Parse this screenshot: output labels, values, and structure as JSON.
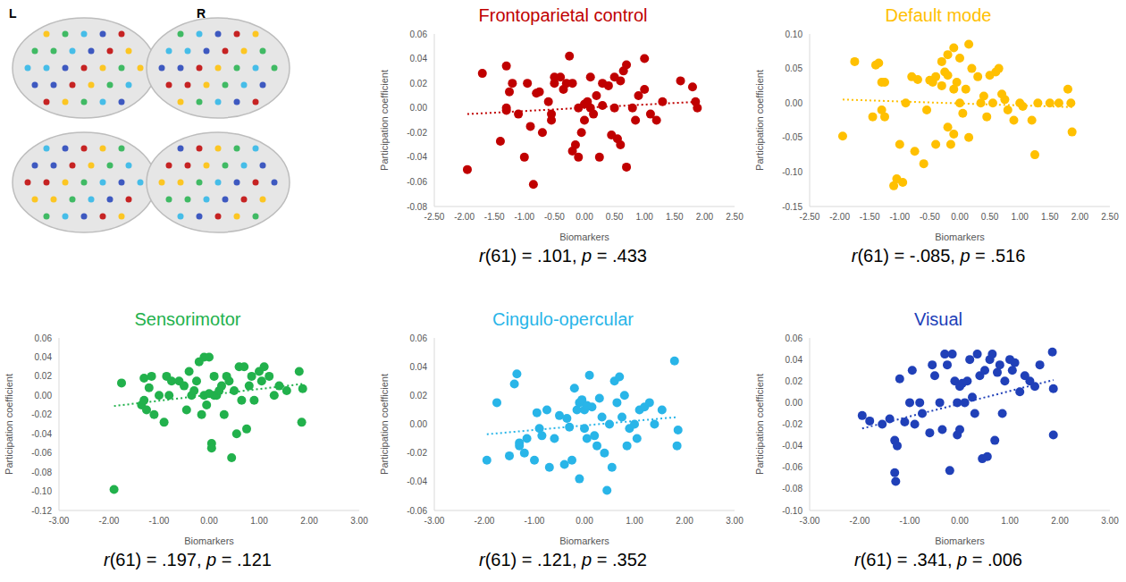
{
  "brain_panel": {
    "hemisphere_labels": [
      "L",
      "R"
    ]
  },
  "chart_data": [
    {
      "type": "scatter",
      "title": "Frontoparietal control",
      "color": "#c00000",
      "x_label": "Biomarkers",
      "y_label": "Participation coefficient",
      "marker": "circle",
      "line_style": "dotted",
      "x": [
        -1.95,
        -1.7,
        -1.4,
        -1.3,
        -1.3,
        -1.3,
        -1.25,
        -1.2,
        -1.1,
        -1.0,
        -0.95,
        -0.9,
        -0.85,
        -0.8,
        -0.75,
        -0.7,
        -0.6,
        -0.55,
        -0.55,
        -0.5,
        -0.5,
        -0.4,
        -0.35,
        -0.3,
        -0.25,
        -0.2,
        -0.2,
        -0.15,
        -0.1,
        -0.1,
        -0.05,
        0.0,
        0.0,
        0.05,
        0.1,
        0.1,
        0.15,
        0.2,
        0.25,
        0.3,
        0.3,
        0.4,
        0.45,
        0.5,
        0.5,
        0.55,
        0.6,
        0.6,
        0.65,
        0.7,
        0.7,
        0.8,
        0.85,
        0.9,
        1.0,
        1.0,
        1.1,
        1.2,
        1.3,
        1.6,
        1.8,
        1.85,
        1.88
      ],
      "y": [
        -0.05,
        0.028,
        -0.027,
        0.034,
        0.0,
        -0.002,
        0.013,
        0.02,
        -0.005,
        -0.04,
        0.02,
        -0.015,
        -0.062,
        0.012,
        0.013,
        -0.02,
        0.005,
        -0.005,
        -0.01,
        0.025,
        0.02,
        0.025,
        0.015,
        0.02,
        0.042,
        -0.035,
        0.02,
        -0.03,
        -0.04,
        0.0,
        -0.02,
        -0.01,
        0.003,
        0.005,
        0.025,
        0.0,
        -0.005,
        0.01,
        -0.04,
        0.002,
        0.02,
        0.018,
        -0.022,
        0.025,
        0.0,
        -0.025,
        -0.03,
        0.022,
        0.03,
        0.035,
        -0.048,
        0.0,
        -0.01,
        0.01,
        0.04,
        0.015,
        -0.005,
        -0.01,
        0.005,
        0.022,
        0.017,
        0.005,
        0.0
      ],
      "trendline": {
        "x": [
          -1.95,
          1.88
        ],
        "y": [
          -0.005,
          0.005
        ]
      },
      "xlim": [
        -2.5,
        2.5
      ],
      "xticks": [
        {
          "value": -2.5,
          "label": "-2.50"
        },
        {
          "value": -2,
          "label": "-2.00"
        },
        {
          "value": -1.5,
          "label": "-1.50"
        },
        {
          "value": -1,
          "label": "-1.00"
        },
        {
          "value": -0.5,
          "label": "-0.50"
        },
        {
          "value": 0,
          "label": "0.00"
        },
        {
          "value": 0.5,
          "label": "0.50"
        },
        {
          "value": 1,
          "label": "1.00"
        },
        {
          "value": 1.5,
          "label": "1.50"
        },
        {
          "value": 2,
          "label": "2.00"
        },
        {
          "value": 2.5,
          "label": "2.50"
        }
      ],
      "ylim": [
        -0.08,
        0.06
      ],
      "yticks": [
        -0.08,
        -0.06,
        -0.04,
        -0.02,
        {
          "value": 0,
          "label": "0.00"
        },
        0.02,
        0.04,
        0.06
      ],
      "annotation": "r(61) = .101, p = .433"
    },
    {
      "type": "scatter",
      "title": "Default mode",
      "color": "#ffc000",
      "x_label": "Biomarkers",
      "y_label": "Participation coefficient",
      "marker": "circle",
      "line_style": "dotted",
      "x": [
        -1.95,
        -1.75,
        -1.45,
        -1.4,
        -1.35,
        -1.3,
        -1.25,
        -1.3,
        -1.25,
        -1.1,
        -1.05,
        -1.0,
        -0.95,
        -0.9,
        -0.8,
        -0.75,
        -0.7,
        -0.6,
        -0.55,
        -0.5,
        -0.45,
        -0.4,
        -0.4,
        -0.3,
        -0.3,
        -0.25,
        -0.2,
        -0.2,
        -0.2,
        -0.15,
        -0.1,
        -0.1,
        -0.1,
        -0.05,
        0.0,
        0.0,
        0.05,
        0.1,
        0.15,
        0.15,
        0.2,
        0.3,
        0.35,
        0.4,
        0.45,
        0.5,
        0.55,
        0.6,
        0.65,
        0.7,
        0.75,
        0.8,
        0.9,
        1.0,
        1.05,
        1.2,
        1.25,
        1.3,
        1.5,
        1.65,
        1.8,
        1.85,
        1.87
      ],
      "y": [
        -0.048,
        0.06,
        -0.02,
        0.055,
        0.058,
        0.03,
        -0.02,
        -0.01,
        0.03,
        -0.12,
        -0.11,
        -0.06,
        -0.115,
        0.0,
        0.038,
        -0.07,
        0.034,
        -0.088,
        -0.01,
        0.033,
        0.03,
        0.038,
        -0.06,
        0.06,
        0.025,
        0.045,
        0.07,
        0.04,
        -0.035,
        -0.06,
        0.08,
        0.02,
        -0.045,
        0.03,
        0.065,
        0.0,
        -0.015,
        0.02,
        0.085,
        -0.05,
        0.05,
        0.038,
        0.0,
        0.01,
        -0.02,
        0.04,
        0.0,
        0.045,
        0.05,
        0.013,
        0.005,
        -0.01,
        -0.025,
        0.0,
        -0.005,
        -0.025,
        -0.075,
        0.0,
        0.0,
        0.0,
        0.02,
        0.0,
        -0.042
      ],
      "trendline": {
        "x": [
          -1.95,
          1.87
        ],
        "y": [
          0.005,
          -0.006
        ]
      },
      "xlim": [
        -2.5,
        2.5
      ],
      "xticks": [
        {
          "value": -2.5,
          "label": "-2.50"
        },
        {
          "value": -2,
          "label": "-2.00"
        },
        {
          "value": -1.5,
          "label": "-1.50"
        },
        {
          "value": -1,
          "label": "-1.00"
        },
        {
          "value": -0.5,
          "label": "-0.50"
        },
        {
          "value": 0,
          "label": "0.00"
        },
        {
          "value": 0.5,
          "label": "0.50"
        },
        {
          "value": 1,
          "label": "1.00"
        },
        {
          "value": 1.5,
          "label": "1.50"
        },
        {
          "value": 2,
          "label": "2.00"
        },
        {
          "value": 2.5,
          "label": "2.50"
        }
      ],
      "ylim": [
        -0.15,
        0.1
      ],
      "yticks": [
        -0.15,
        {
          "value": -0.1,
          "label": "-0.10"
        },
        -0.05,
        {
          "value": 0,
          "label": "0.00"
        },
        0.05,
        {
          "value": 0.1,
          "label": "0.10"
        }
      ],
      "annotation": "r(61) = -.085, p = .516"
    },
    {
      "type": "scatter",
      "title": "Sensorimotor",
      "color": "#22b14c",
      "x_label": "Biomarkers",
      "y_label": "Participation coefficient",
      "marker": "circle",
      "line_style": "dotted",
      "x": [
        -1.9,
        -1.75,
        -1.35,
        -1.3,
        -1.3,
        -1.25,
        -1.2,
        -1.15,
        -1.1,
        -1.0,
        -0.9,
        -0.85,
        -0.8,
        -0.75,
        -0.6,
        -0.5,
        -0.45,
        -0.4,
        -0.35,
        -0.3,
        -0.25,
        -0.2,
        -0.15,
        -0.1,
        -0.1,
        -0.05,
        0.0,
        0.0,
        0.05,
        0.05,
        0.1,
        0.1,
        0.15,
        0.2,
        0.25,
        0.3,
        0.35,
        0.4,
        0.45,
        0.5,
        0.55,
        0.6,
        0.65,
        0.7,
        0.75,
        0.8,
        0.85,
        0.9,
        1.0,
        1.05,
        1.1,
        1.2,
        1.3,
        1.4,
        1.55,
        1.8,
        1.85,
        1.87
      ],
      "y": [
        -0.098,
        0.013,
        -0.01,
        0.018,
        -0.005,
        -0.015,
        0.008,
        0.02,
        -0.02,
        0.0,
        -0.028,
        0.02,
        0.0,
        0.015,
        0.015,
        0.01,
        -0.015,
        0.025,
        0.0,
        0.005,
        0.015,
        0.035,
        -0.02,
        0.04,
        0.0,
        -0.01,
        0.04,
        0.002,
        -0.05,
        -0.055,
        0.0,
        0.02,
        0.0,
        0.005,
        0.01,
        -0.02,
        0.02,
        0.015,
        -0.065,
        0.005,
        -0.04,
        0.03,
        -0.005,
        0.03,
        -0.035,
        0.01,
        0.02,
        -0.005,
        0.025,
        0.015,
        0.03,
        0.02,
        0.0,
        0.01,
        0.005,
        0.025,
        -0.028,
        0.007
      ],
      "trendline": {
        "x": [
          -1.9,
          1.87
        ],
        "y": [
          -0.011,
          0.012
        ]
      },
      "xlim": [
        -3,
        3
      ],
      "xticks": [
        {
          "value": -3,
          "label": "-3.00"
        },
        {
          "value": -2,
          "label": "-2.00"
        },
        {
          "value": -1,
          "label": "-1.00"
        },
        {
          "value": 0,
          "label": "0.00"
        },
        {
          "value": 1,
          "label": "1.00"
        },
        {
          "value": 2,
          "label": "2.00"
        },
        {
          "value": 3,
          "label": "3.00"
        }
      ],
      "ylim": [
        -0.12,
        0.06
      ],
      "yticks": [
        -0.12,
        {
          "value": -0.1,
          "label": "-0.10"
        },
        -0.08,
        -0.06,
        -0.04,
        -0.02,
        {
          "value": 0,
          "label": "0.00"
        },
        0.02,
        0.04,
        0.06
      ],
      "annotation": "r(61) = .197, p = .121"
    },
    {
      "type": "scatter",
      "title": "Cingulo-opercular",
      "color": "#29b5e8",
      "x_label": "Biomarkers",
      "y_label": "Participation coefficient",
      "marker": "circle",
      "line_style": "dotted",
      "x": [
        -1.95,
        -1.75,
        -1.5,
        -1.4,
        -1.35,
        -1.3,
        -1.3,
        -1.2,
        -1.15,
        -1.0,
        -0.95,
        -0.9,
        -0.85,
        -0.75,
        -0.7,
        -0.6,
        -0.5,
        -0.4,
        -0.35,
        -0.3,
        -0.25,
        -0.2,
        -0.15,
        -0.1,
        -0.1,
        -0.05,
        0.0,
        0.0,
        0.05,
        0.05,
        0.1,
        0.15,
        0.2,
        0.25,
        0.3,
        0.35,
        0.4,
        0.45,
        0.5,
        0.55,
        0.6,
        0.65,
        0.7,
        0.75,
        0.8,
        0.85,
        0.9,
        1.0,
        1.05,
        1.1,
        1.2,
        1.3,
        1.4,
        1.55,
        1.8,
        1.85,
        1.87
      ],
      "y": [
        -0.025,
        0.015,
        -0.022,
        0.028,
        0.035,
        -0.013,
        -0.015,
        -0.02,
        -0.01,
        -0.025,
        0.008,
        -0.003,
        -0.008,
        0.01,
        -0.03,
        -0.01,
        0.006,
        -0.028,
        0.004,
        -0.002,
        -0.025,
        0.025,
        0.01,
        -0.038,
        0.015,
        0.017,
        0.01,
        -0.003,
        0.013,
        -0.01,
        0.034,
        0.012,
        -0.008,
        -0.015,
        0.018,
        0.005,
        -0.02,
        -0.046,
        0.0,
        -0.03,
        0.03,
        0.015,
        0.033,
        0.005,
        0.02,
        -0.015,
        -0.003,
        0.0,
        -0.01,
        0.01,
        0.012,
        0.015,
        0.0,
        0.01,
        0.044,
        -0.015,
        -0.004
      ],
      "trendline": {
        "x": [
          -1.95,
          1.87
        ],
        "y": [
          -0.007,
          0.005
        ]
      },
      "xlim": [
        -3,
        3
      ],
      "xticks": [
        {
          "value": -3,
          "label": "-3.00"
        },
        {
          "value": -2,
          "label": "-2.00"
        },
        {
          "value": -1,
          "label": "-1.00"
        },
        {
          "value": 0,
          "label": "0.00"
        },
        {
          "value": 1,
          "label": "1.00"
        },
        {
          "value": 2,
          "label": "2.00"
        },
        {
          "value": 3,
          "label": "3.00"
        }
      ],
      "ylim": [
        -0.06,
        0.06
      ],
      "yticks": [
        -0.06,
        -0.04,
        -0.02,
        {
          "value": 0,
          "label": "0.00"
        },
        0.02,
        0.04,
        0.06
      ],
      "annotation": "r(61) = .121, p = .352"
    },
    {
      "type": "scatter",
      "title": "Visual",
      "color": "#2040b8",
      "x_label": "Biomarkers",
      "y_label": "Participation coefficient",
      "marker": "circle",
      "line_style": "dotted",
      "x": [
        -1.95,
        -1.8,
        -1.55,
        -1.4,
        -1.3,
        -1.3,
        -1.28,
        -1.25,
        -1.2,
        -1.1,
        -1.0,
        -0.95,
        -0.9,
        -0.8,
        -0.75,
        -0.6,
        -0.55,
        -0.5,
        -0.4,
        -0.35,
        -0.3,
        -0.25,
        -0.2,
        -0.15,
        -0.1,
        -0.05,
        -0.05,
        0.0,
        0.0,
        0.05,
        0.1,
        0.15,
        0.2,
        0.25,
        0.3,
        0.35,
        0.4,
        0.45,
        0.5,
        0.55,
        0.6,
        0.65,
        0.7,
        0.75,
        0.8,
        0.85,
        0.9,
        1.0,
        1.05,
        1.1,
        1.2,
        1.3,
        1.4,
        1.5,
        1.6,
        1.85,
        1.87,
        1.87
      ],
      "y": [
        -0.012,
        -0.017,
        -0.02,
        -0.015,
        -0.035,
        -0.065,
        -0.073,
        -0.04,
        0.022,
        -0.018,
        0.0,
        0.03,
        -0.02,
        0.0,
        -0.01,
        -0.028,
        0.035,
        0.025,
        0.0,
        -0.025,
        0.045,
        0.035,
        -0.063,
        0.045,
        0.02,
        0.0,
        -0.03,
        0.015,
        -0.025,
        0.018,
        0.0,
        0.02,
        0.04,
        0.005,
        -0.01,
        0.045,
        0.025,
        -0.052,
        0.03,
        -0.05,
        0.04,
        0.045,
        -0.035,
        0.028,
        0.035,
        -0.01,
        0.02,
        0.04,
        0.03,
        0.037,
        0.01,
        0.025,
        0.02,
        0.015,
        0.035,
        0.047,
        0.013,
        -0.03
      ],
      "trendline": {
        "x": [
          -1.95,
          1.87
        ],
        "y": [
          -0.024,
          0.021
        ]
      },
      "xlim": [
        -3,
        3
      ],
      "xticks": [
        {
          "value": -3,
          "label": "-3.00"
        },
        {
          "value": -2,
          "label": "-2.00"
        },
        {
          "value": -1,
          "label": "-1.00"
        },
        {
          "value": 0,
          "label": "0.00"
        },
        {
          "value": 1,
          "label": "1.00"
        },
        {
          "value": 2,
          "label": "2.00"
        },
        {
          "value": 3,
          "label": "3.00"
        }
      ],
      "ylim": [
        -0.1,
        0.06
      ],
      "yticks": [
        {
          "value": -0.1,
          "label": "-0.10"
        },
        -0.08,
        -0.06,
        -0.04,
        -0.02,
        {
          "value": 0,
          "label": "0.00"
        },
        0.02,
        0.04,
        0.06
      ],
      "annotation": "r(61) = .341, p = .006"
    }
  ]
}
